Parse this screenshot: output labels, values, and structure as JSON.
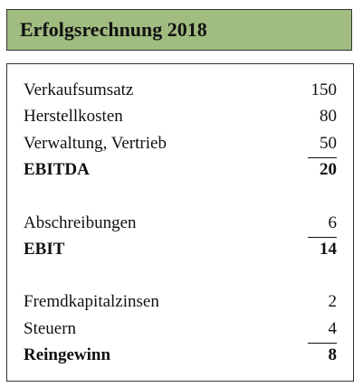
{
  "header": {
    "title": "Erfolgsrechnung 2018"
  },
  "sections": [
    {
      "items": [
        {
          "label": "Verkaufsumsatz",
          "value": 150
        },
        {
          "label": "Herstellkosten",
          "value": 80
        },
        {
          "label": "Verwaltung, Vertrieb",
          "value": 50
        }
      ],
      "total": {
        "label": "EBITDA",
        "value": 20
      }
    },
    {
      "items": [
        {
          "label": "Abschreibungen",
          "value": 6
        }
      ],
      "total": {
        "label": "EBIT",
        "value": 14
      }
    },
    {
      "items": [
        {
          "label": "Fremdkapitalzinsen",
          "value": 2
        },
        {
          "label": "Steuern",
          "value": 4
        }
      ],
      "total": {
        "label": "Reingewinn",
        "value": 8
      }
    }
  ]
}
